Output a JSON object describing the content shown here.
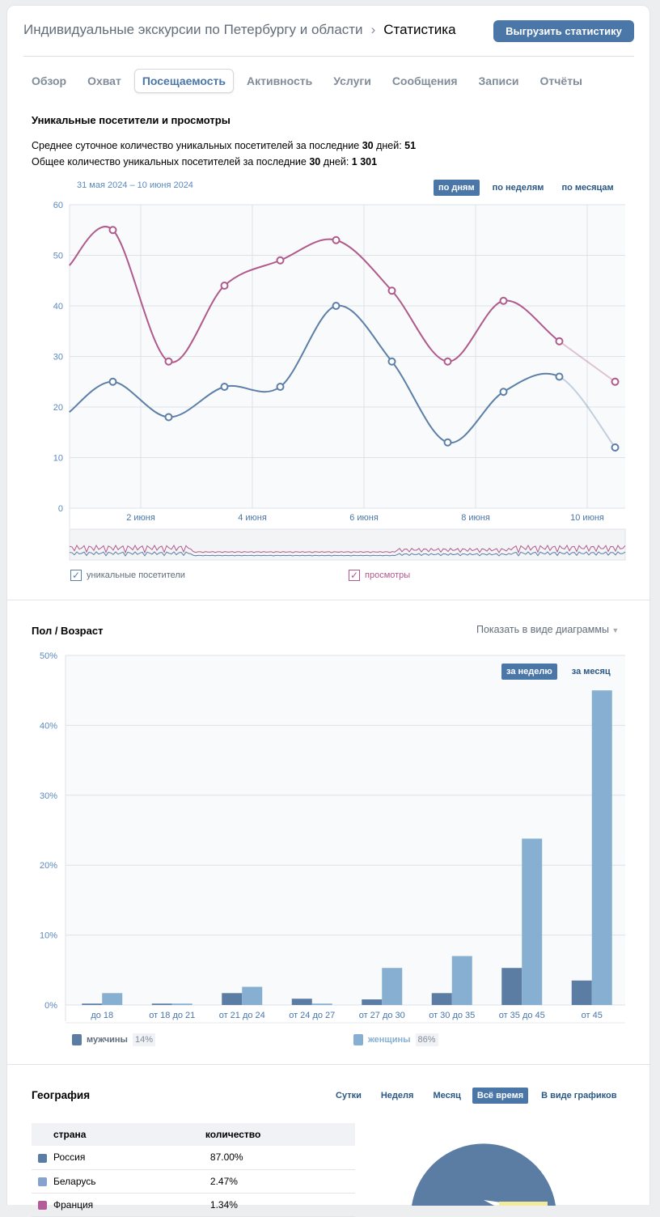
{
  "header": {
    "group": "Индивидуальные экскурсии по Петербургу и области",
    "separator": "›",
    "current": "Статистика",
    "export_label": "Выгрузить статистику"
  },
  "tabs": [
    "Обзор",
    "Охват",
    "Посещаемость",
    "Активность",
    "Услуги",
    "Сообщения",
    "Записи",
    "Отчёты"
  ],
  "visits": {
    "title": "Уникальные посетители и просмотры",
    "line1_pre": "Среднее суточное количество уникальных посетителей за последние ",
    "line1_days": "30",
    "line1_mid": " дней: ",
    "line1_val": "51",
    "line2_pre": "Общее количество уникальных посетителей за последние ",
    "line2_days": "30",
    "line2_mid": " дней: ",
    "line2_val": "1 301",
    "date_range": "31 мая 2024 – 10 июня 2024",
    "periods": [
      "по дням",
      "по неделям",
      "по месяцам"
    ],
    "legend": [
      "уникальные посетители",
      "просмотры"
    ]
  },
  "colors": {
    "visitors": "#5b7fa6",
    "views": "#b05a8c",
    "accent": "#4a76a8",
    "male": "#5b7ca3",
    "female": "#86afd2"
  },
  "chart_data": [
    {
      "type": "line",
      "title": "Уникальные посетители и просмотры",
      "ylim": [
        0,
        60
      ],
      "yticks": [
        0,
        10,
        20,
        30,
        40,
        50,
        60
      ],
      "xticks": [
        {
          "day": 2,
          "label": "2 июня"
        },
        {
          "day": 4,
          "label": "4 июня"
        },
        {
          "day": 6,
          "label": "6 июня"
        },
        {
          "day": 8,
          "label": "8 июня"
        },
        {
          "day": 10,
          "label": "10 июня"
        }
      ],
      "x": [
        0.72,
        1.5,
        2.5,
        3.5,
        4.5,
        5.5,
        6.5,
        7.5,
        8.5,
        9.5,
        10.5
      ],
      "series": [
        {
          "name": "уникальные посетители",
          "values": [
            19,
            25,
            18,
            24,
            24,
            40,
            29,
            13,
            23,
            26,
            12
          ]
        },
        {
          "name": "просмотры",
          "values": [
            48,
            55,
            29,
            44,
            49,
            53,
            43,
            29,
            41,
            33,
            25
          ]
        }
      ]
    },
    {
      "type": "bar",
      "title": "Пол / Возраст",
      "ylim": [
        0,
        50
      ],
      "yticks": [
        "0%",
        "10%",
        "20%",
        "30%",
        "40%",
        "50%"
      ],
      "categories": [
        "до 18",
        "от 18 до 21",
        "от 21 до 24",
        "от 24 до 27",
        "от 27 до 30",
        "от 30 до 35",
        "от 35 до 45",
        "от 45"
      ],
      "series": [
        {
          "name": "мужчины",
          "values": [
            0.2,
            0.2,
            1.7,
            0.9,
            0.8,
            1.7,
            5.3,
            3.5
          ]
        },
        {
          "name": "женщины",
          "values": [
            1.7,
            0.2,
            2.6,
            0.2,
            5.3,
            7.0,
            23.8,
            45.0
          ]
        }
      ]
    }
  ],
  "gender": {
    "title": "Пол / Возраст",
    "view_toggle": "Показать в виде диаграммы",
    "periods": [
      "за неделю",
      "за месяц"
    ],
    "male_label": "мужчины",
    "male_pct": "14%",
    "female_label": "женщины",
    "female_pct": "86%"
  },
  "geo": {
    "title": "География",
    "periods": [
      "Сутки",
      "Неделя",
      "Месяц",
      "Всё время",
      "В виде графиков"
    ],
    "col_country": "страна",
    "col_count": "количество",
    "rows": [
      {
        "country": "Россия",
        "value": "87.00%",
        "color": "#5b7ca3"
      },
      {
        "country": "Беларусь",
        "value": "2.47%",
        "color": "#86a3cf"
      },
      {
        "country": "Франция",
        "value": "1.34%",
        "color": "#b45c9a"
      }
    ]
  }
}
